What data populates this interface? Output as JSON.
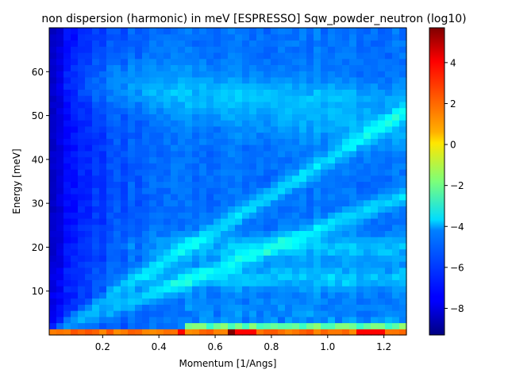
{
  "chart_data": {
    "type": "heatmap",
    "title": "non dispersion (harmonic) in meV [ESPRESSO] Sqw_powder_neutron (log10)",
    "xlabel": "Momentum [1/Angs]",
    "ylabel": "Energy [meV]",
    "xlim": [
      0.01,
      1.28
    ],
    "ylim": [
      0,
      70
    ],
    "x_ticks": [
      "0.2",
      "0.4",
      "0.6",
      "0.8",
      "1.0",
      "1.2"
    ],
    "y_ticks": [
      "10",
      "20",
      "30",
      "40",
      "50",
      "60"
    ],
    "colorbar": {
      "colormap": "jet",
      "range": [
        -9.3,
        5.7
      ],
      "ticks": [
        "−8",
        "−6",
        "−4",
        "−2",
        "0",
        "2",
        "4"
      ]
    },
    "grid": {
      "nx": 50,
      "ny": 50,
      "features": {
        "elastic_line_energy_meV": 0.7,
        "elastic_line_log10": 2.2,
        "low_q_log10": -8.5,
        "background_log10": -5.7,
        "dispersive_branches_slope_meV_per_invAngs": [
          40,
          25
        ],
        "flat_bands_meV": [
          13,
          20,
          55
        ],
        "peak_log10": 5.7
      }
    }
  }
}
